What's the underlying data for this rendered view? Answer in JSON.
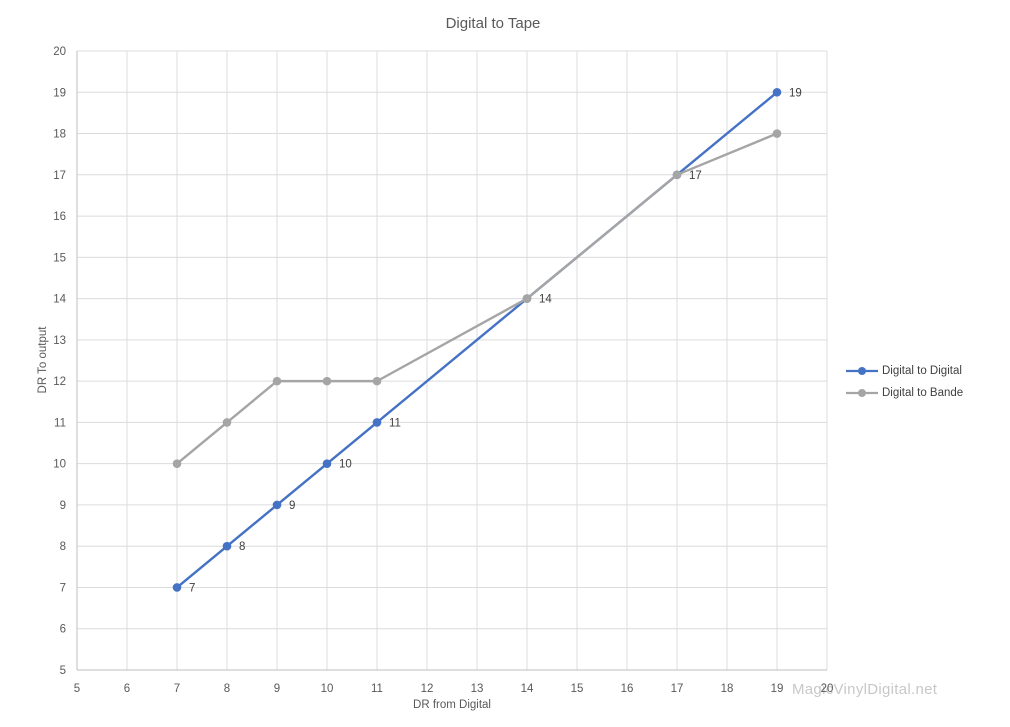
{
  "chart_data": {
    "type": "line",
    "title": "Digital to Tape",
    "xlabel": "DR from Digital",
    "ylabel": "DR To output",
    "xlim": [
      5,
      20
    ],
    "ylim": [
      5,
      20
    ],
    "x_ticks": [
      5,
      6,
      7,
      8,
      9,
      10,
      11,
      12,
      13,
      14,
      15,
      16,
      17,
      18,
      19,
      20
    ],
    "y_ticks": [
      5,
      6,
      7,
      8,
      9,
      10,
      11,
      12,
      13,
      14,
      15,
      16,
      17,
      18,
      19,
      20
    ],
    "grid": true,
    "legend_position": "right",
    "watermark": "MagicVinylDigital.net",
    "series": [
      {
        "name": "Digital to Digital",
        "color": "#4472c4",
        "x": [
          7,
          8,
          9,
          10,
          11,
          14,
          17,
          19
        ],
        "y": [
          7,
          8,
          9,
          10,
          11,
          14,
          17,
          19
        ],
        "labels": [
          "7",
          "8",
          "9",
          "10",
          "11",
          "14",
          "17",
          "19"
        ]
      },
      {
        "name": "Digital to Bande",
        "color": "#a5a5a5",
        "x": [
          7,
          8,
          9,
          10,
          11,
          14,
          17,
          19
        ],
        "y": [
          10,
          11,
          12,
          12,
          12,
          14,
          17,
          18
        ],
        "labels": [
          "",
          "",
          "",
          "",
          "",
          "",
          "",
          ""
        ]
      }
    ],
    "colors": {
      "gridline": "#dcdcdc",
      "axis_line": "#bfbfbf",
      "tick_text": "#595959",
      "title_text": "#595959",
      "data_label_text": "#404040",
      "legend_text": "#404040"
    }
  }
}
